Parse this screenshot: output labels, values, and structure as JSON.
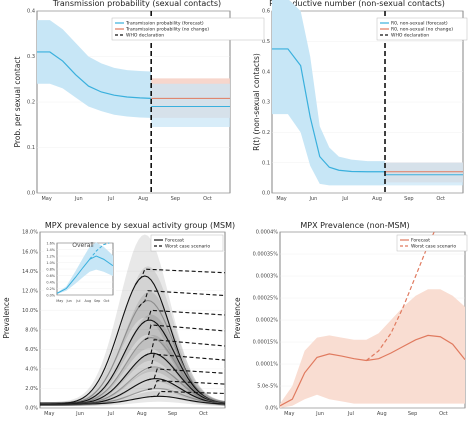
{
  "colors": {
    "blue": "#3ab0dd",
    "blue_band": "#c7e6f6",
    "red": "#e07a5f",
    "red_band": "#f6d2c6",
    "purple_band": "#d9c6d9",
    "black": "#111111",
    "grey": "#9a9a9a",
    "orange": "#e07a5f",
    "orange_band": "#f9ddd2"
  },
  "panels": {
    "tl": {
      "title": "Transmission probability (sexual contacts)",
      "ylabel": "Prob. per sexual contact",
      "legend": [
        "Transmission probability (forecast)",
        "Transmission probability (no change)",
        "WHO declaration"
      ]
    },
    "tr": {
      "title": "Reproductive number (non-sexual contacts)",
      "ylabel": "R(t) (non-sexual contacts)",
      "legend": [
        "R0, non-sexual (forecast)",
        "R0, non-sexual (no change)",
        "WHO declaration"
      ]
    },
    "bl": {
      "title": "MPX prevalence by sexual activity group (MSM)",
      "ylabel": "Prevalence",
      "legend": [
        "Forecast",
        "Worst case scenario"
      ],
      "inset_title": "Overall"
    },
    "br": {
      "title": "MPX Prevalence (non-MSM)",
      "ylabel": "Prevalence",
      "legend": [
        "Forecast",
        "Worst case scenario"
      ]
    }
  },
  "chart_data": [
    {
      "type": "line",
      "title": "Transmission probability (sexual contacts)",
      "ylabel": "Prob. per sexual contact",
      "x_ticks": [
        "May",
        "Jun",
        "Jul",
        "Aug",
        "Sep",
        "Oct"
      ],
      "y_ticks": [
        "0.0",
        "0.1",
        "0.2",
        "0.3",
        "0.4"
      ],
      "ylim": [
        0,
        0.4
      ],
      "who_declaration_x": 3.55,
      "series": [
        {
          "name": "Transmission probability (forecast)",
          "x": [
            0,
            0.4,
            0.8,
            1.2,
            1.6,
            2.0,
            2.4,
            2.8,
            3.2,
            3.55
          ],
          "y": [
            0.31,
            0.31,
            0.29,
            0.26,
            0.235,
            0.222,
            0.215,
            0.211,
            0.209,
            0.208
          ],
          "lower": [
            0.24,
            0.24,
            0.23,
            0.21,
            0.19,
            0.18,
            0.172,
            0.168,
            0.166,
            0.165
          ],
          "upper": [
            0.38,
            0.38,
            0.36,
            0.33,
            0.3,
            0.285,
            0.275,
            0.27,
            0.268,
            0.267
          ]
        },
        {
          "name": "Transmission probability (no change)",
          "x": [
            3.55,
            6.0
          ],
          "y": [
            0.208,
            0.208
          ],
          "lower": [
            0.165,
            0.165
          ],
          "upper": [
            0.252,
            0.252
          ]
        },
        {
          "name": "forecast-continuation",
          "x": [
            3.55,
            6.0
          ],
          "y": [
            0.19,
            0.19
          ],
          "lower": [
            0.145,
            0.145
          ],
          "upper": [
            0.24,
            0.24
          ]
        }
      ]
    },
    {
      "type": "line",
      "title": "Reproductive number (non-sexual contacts)",
      "ylabel": "R(t) (non-sexual contacts)",
      "x_ticks": [
        "May",
        "Jun",
        "Jul",
        "Aug",
        "Sep",
        "Oct"
      ],
      "y_ticks": [
        "0.0",
        "0.1",
        "0.2",
        "0.3",
        "0.4",
        "0.5",
        "0.6"
      ],
      "ylim": [
        0,
        0.6
      ],
      "who_declaration_x": 3.55,
      "series": [
        {
          "name": "R0, non-sexual (forecast)",
          "x": [
            0,
            0.5,
            0.9,
            1.2,
            1.5,
            1.8,
            2.1,
            2.5,
            3.0,
            3.55
          ],
          "y": [
            0.475,
            0.475,
            0.42,
            0.25,
            0.12,
            0.085,
            0.075,
            0.071,
            0.07,
            0.07
          ],
          "lower": [
            0.26,
            0.26,
            0.2,
            0.09,
            0.03,
            0.025,
            0.025,
            0.025,
            0.025,
            0.025
          ],
          "upper": [
            0.64,
            0.64,
            0.6,
            0.45,
            0.22,
            0.15,
            0.12,
            0.11,
            0.105,
            0.105
          ]
        },
        {
          "name": "R0, non-sexual (no change)",
          "x": [
            3.55,
            6.0
          ],
          "y": [
            0.07,
            0.07
          ],
          "lower": [
            0.035,
            0.035
          ],
          "upper": [
            0.1,
            0.1
          ]
        },
        {
          "name": "forecast-continuation",
          "x": [
            3.55,
            6.0
          ],
          "y": [
            0.06,
            0.06
          ],
          "lower": [
            0.025,
            0.025
          ],
          "upper": [
            0.1,
            0.1
          ]
        }
      ]
    },
    {
      "type": "line",
      "title": "MPX prevalence by sexual activity group (MSM)",
      "ylabel": "Prevalence",
      "x_ticks": [
        "May",
        "Jun",
        "Jul",
        "Aug",
        "Sep",
        "Oct"
      ],
      "y_ticks": [
        "0.0%",
        "2.0%",
        "4.0%",
        "6.0%",
        "8.0%",
        "10.0%",
        "12.0%",
        "14.0%",
        "16.0%",
        "18.0%"
      ],
      "ylim": [
        0,
        0.18
      ],
      "groups": [
        {
          "peak": 0.135,
          "peak_x": 3.4,
          "worst": 0.142
        },
        {
          "peak": 0.11,
          "peak_x": 3.5,
          "worst": 0.12
        },
        {
          "peak": 0.09,
          "peak_x": 3.55,
          "worst": 0.1
        },
        {
          "peak": 0.072,
          "peak_x": 3.6,
          "worst": 0.085
        },
        {
          "peak": 0.056,
          "peak_x": 3.65,
          "worst": 0.07
        },
        {
          "peak": 0.042,
          "peak_x": 3.7,
          "worst": 0.055
        },
        {
          "peak": 0.03,
          "peak_x": 3.75,
          "worst": 0.04
        },
        {
          "peak": 0.02,
          "peak_x": 3.8,
          "worst": 0.028
        },
        {
          "peak": 0.012,
          "peak_x": 3.85,
          "worst": 0.017
        }
      ],
      "inset": {
        "title": "Overall",
        "y_ticks": [
          "0.0%",
          "0.2%",
          "0.4%",
          "0.6%",
          "0.8%",
          "1.0%",
          "1.2%",
          "1.4%",
          "1.6%"
        ],
        "x_ticks": [
          "May",
          "Jun",
          "Jul",
          "Aug",
          "Sep",
          "Oct"
        ],
        "ylim": [
          0,
          0.016
        ],
        "forecast": {
          "x": [
            0,
            1,
            2,
            2.8,
            3.5,
            4.2,
            5,
            6
          ],
          "y": [
            0.0005,
            0.002,
            0.0055,
            0.0085,
            0.011,
            0.012,
            0.011,
            0.009
          ]
        },
        "worst": {
          "x": [
            3.5,
            4.2,
            5,
            5.6
          ],
          "y": [
            0.011,
            0.0135,
            0.0155,
            0.016
          ]
        }
      }
    },
    {
      "type": "line",
      "title": "MPX Prevalence (non-MSM)",
      "ylabel": "Prevalence",
      "x_ticks": [
        "May",
        "Jun",
        "Jul",
        "Aug",
        "Sep",
        "Oct"
      ],
      "y_ticks": [
        "0.0%",
        "5.0e-5%",
        "0.0001%",
        "0.00015%",
        "0.0002%",
        "0.00025%",
        "0.0003%",
        "0.00035%",
        "0.0004%"
      ],
      "ylim": [
        0,
        0.0004
      ],
      "series": [
        {
          "name": "Forecast",
          "x": [
            0,
            0.4,
            0.8,
            1.2,
            1.6,
            2.0,
            2.4,
            2.8,
            3.2,
            3.6,
            4.0,
            4.4,
            4.8,
            5.2,
            5.6,
            6.0
          ],
          "y": [
            5e-06,
            2e-05,
            8e-05,
            0.000115,
            0.000123,
            0.000118,
            0.000112,
            0.000108,
            0.000112,
            0.000125,
            0.00014,
            0.000155,
            0.000165,
            0.000162,
            0.000145,
            0.00011
          ],
          "lower": [
            0,
            5e-06,
            2e-05,
            3e-05,
            2e-05,
            1.5e-05,
            1e-05,
            1e-05,
            1e-05,
            1e-05,
            1e-05,
            1e-05,
            1e-05,
            1e-05,
            1e-05,
            1e-05
          ],
          "upper": [
            1e-05,
            5e-05,
            0.00013,
            0.00016,
            0.000165,
            0.00016,
            0.000155,
            0.000155,
            0.00017,
            0.0002,
            0.00023,
            0.000255,
            0.00027,
            0.00027,
            0.000255,
            0.00023
          ]
        },
        {
          "name": "Worst case scenario",
          "x": [
            2.8,
            3.2,
            3.6,
            4.0,
            4.4,
            4.8,
            5.0
          ],
          "y": [
            0.000108,
            0.00013,
            0.00017,
            0.00023,
            0.0003,
            0.00037,
            0.0004
          ]
        }
      ]
    }
  ]
}
